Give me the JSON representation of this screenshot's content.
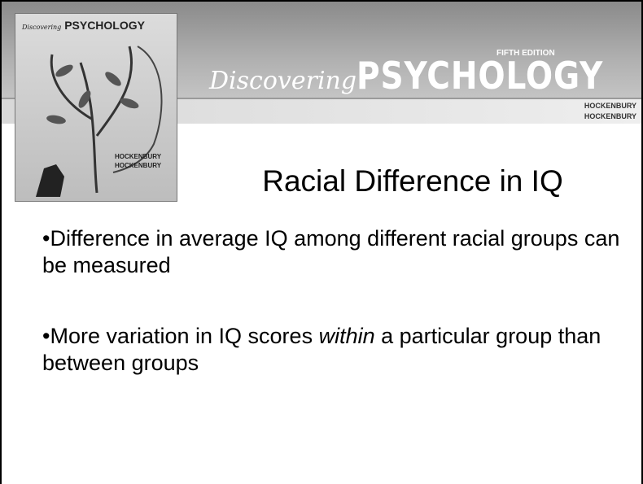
{
  "banner": {
    "script": "Discovering",
    "title": "PSYCHOLOGY",
    "edition": "FIFTH EDITION",
    "authors": [
      "HOCKENBURY",
      "HOCKENBURY"
    ]
  },
  "cover": {
    "script": "Discovering",
    "title": "PSYCHOLOGY",
    "authors": [
      "HOCKENBURY",
      "HOCKENBURY"
    ]
  },
  "slide": {
    "title": "Racial Difference in IQ",
    "bullets": [
      [
        "•Difference in average IQ among different racial groups can be measured"
      ],
      [
        "•More variation in IQ scores ",
        "within",
        " a particular group than between groups"
      ]
    ]
  }
}
